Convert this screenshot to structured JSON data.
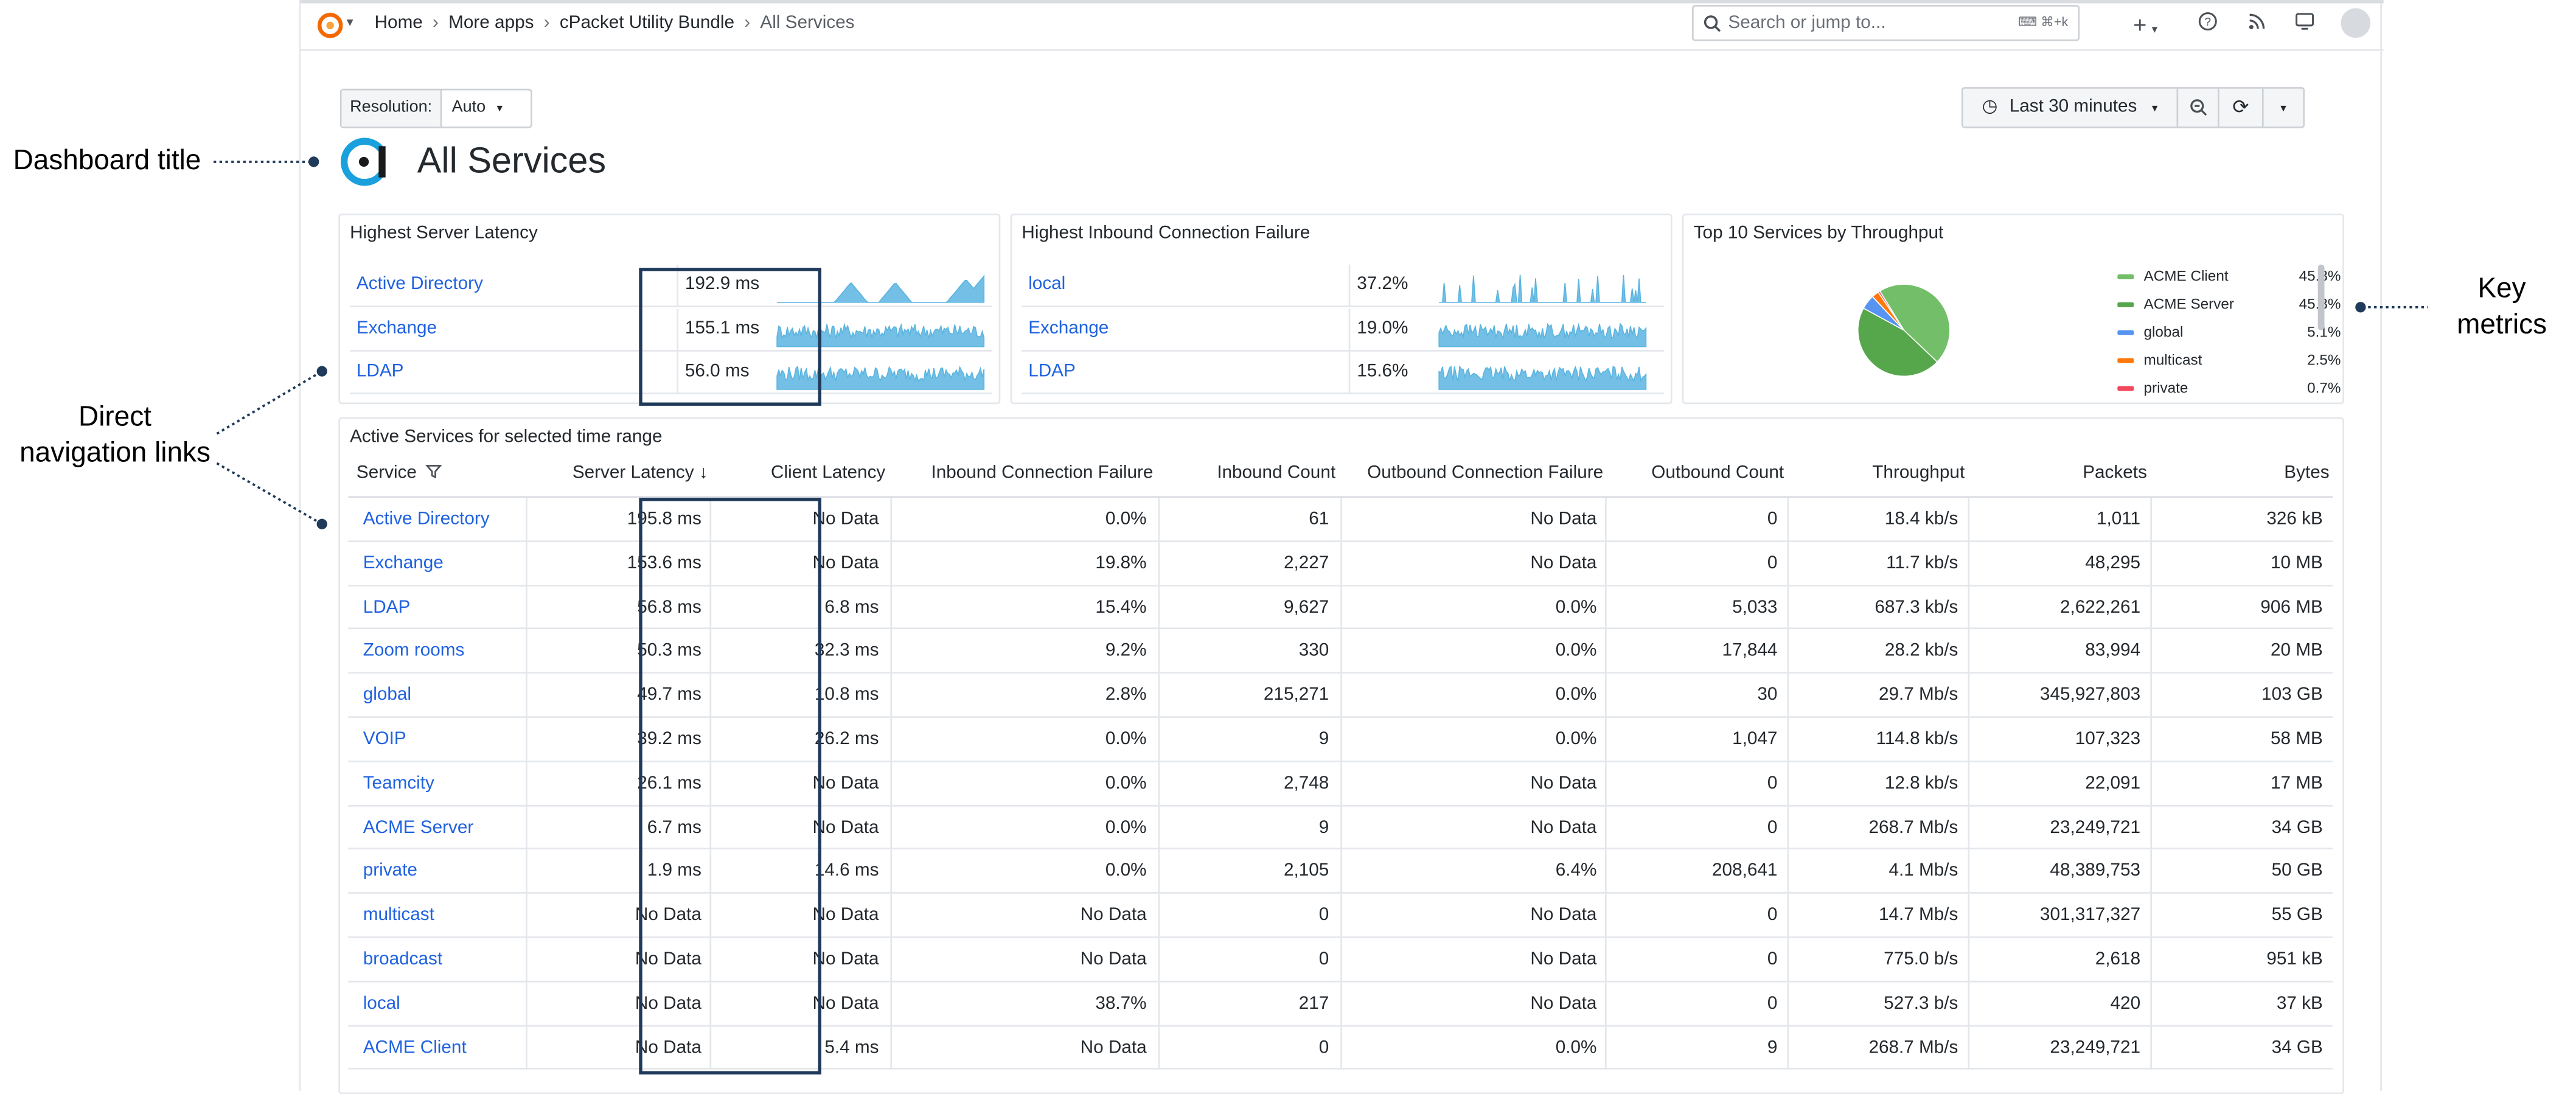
{
  "topbar": {
    "breadcrumbs": [
      "Home",
      "More apps",
      "cPacket Utility Bundle",
      "All Services"
    ],
    "search_placeholder": "Search or jump to...",
    "search_shortcut": "⌘+k",
    "add_label": "+"
  },
  "controls": {
    "resolution_label": "Resolution:",
    "resolution_value": "Auto",
    "time_range": "Last 30 minutes"
  },
  "dashboard": {
    "title": "All Services"
  },
  "latency_panel": {
    "title": "Highest Server Latency",
    "rows": [
      {
        "name": "Active Directory",
        "value": "192.9 ms"
      },
      {
        "name": "Exchange",
        "value": "155.1 ms"
      },
      {
        "name": "LDAP",
        "value": "56.0 ms"
      }
    ]
  },
  "failure_panel": {
    "title": "Highest Inbound Connection Failure",
    "rows": [
      {
        "name": "local",
        "value": "37.2%"
      },
      {
        "name": "Exchange",
        "value": "19.0%"
      },
      {
        "name": "LDAP",
        "value": "15.6%"
      }
    ]
  },
  "throughput_panel": {
    "title": "Top 10 Services by Throughput",
    "legend": [
      {
        "name": "ACME Client",
        "value": "45.8%",
        "percent": 45.8,
        "color": "#73bf69"
      },
      {
        "name": "ACME Server",
        "value": "45.8%",
        "percent": 45.8,
        "color": "#56a64b"
      },
      {
        "name": "global",
        "value": "5.1%",
        "percent": 5.1,
        "color": "#5794f2"
      },
      {
        "name": "multicast",
        "value": "2.5%",
        "percent": 2.5,
        "color": "#ff780a"
      },
      {
        "name": "private",
        "value": "0.7%",
        "percent": 0.7,
        "color": "#f2495c"
      }
    ]
  },
  "table": {
    "title": "Active Services for selected time range",
    "columns": [
      "Service",
      "Server Latency",
      "Client Latency",
      "Inbound Connection Failure",
      "Inbound Count",
      "Outbound Connection Failure",
      "Outbound Count",
      "Throughput",
      "Packets",
      "Bytes"
    ],
    "rows": [
      [
        "Active Directory",
        "195.8 ms",
        "No Data",
        "0.0%",
        "61",
        "No Data",
        "0",
        "18.4 kb/s",
        "1,011",
        "326 kB"
      ],
      [
        "Exchange",
        "153.6 ms",
        "No Data",
        "19.8%",
        "2,227",
        "No Data",
        "0",
        "11.7 kb/s",
        "48,295",
        "10 MB"
      ],
      [
        "LDAP",
        "56.8 ms",
        "6.8 ms",
        "15.4%",
        "9,627",
        "0.0%",
        "5,033",
        "687.3 kb/s",
        "2,622,261",
        "906 MB"
      ],
      [
        "Zoom rooms",
        "50.3 ms",
        "32.3 ms",
        "9.2%",
        "330",
        "0.0%",
        "17,844",
        "28.2 kb/s",
        "83,994",
        "20 MB"
      ],
      [
        "global",
        "49.7 ms",
        "10.8 ms",
        "2.8%",
        "215,271",
        "0.0%",
        "30",
        "29.7 Mb/s",
        "345,927,803",
        "103 GB"
      ],
      [
        "VOIP",
        "39.2 ms",
        "26.2 ms",
        "0.0%",
        "9",
        "0.0%",
        "1,047",
        "114.8 kb/s",
        "107,323",
        "58 MB"
      ],
      [
        "Teamcity",
        "26.1 ms",
        "No Data",
        "0.0%",
        "2,748",
        "No Data",
        "0",
        "12.8 kb/s",
        "22,091",
        "17 MB"
      ],
      [
        "ACME Server",
        "6.7 ms",
        "No Data",
        "0.0%",
        "9",
        "No Data",
        "0",
        "268.7 Mb/s",
        "23,249,721",
        "34 GB"
      ],
      [
        "private",
        "1.9 ms",
        "14.6 ms",
        "0.0%",
        "2,105",
        "6.4%",
        "208,641",
        "4.1 Mb/s",
        "48,389,753",
        "50 GB"
      ],
      [
        "multicast",
        "No Data",
        "No Data",
        "No Data",
        "0",
        "No Data",
        "0",
        "14.7 Mb/s",
        "301,317,327",
        "55 GB"
      ],
      [
        "broadcast",
        "No Data",
        "No Data",
        "No Data",
        "0",
        "No Data",
        "0",
        "775.0 b/s",
        "2,618",
        "951 kB"
      ],
      [
        "local",
        "No Data",
        "No Data",
        "38.7%",
        "217",
        "No Data",
        "0",
        "527.3 b/s",
        "420",
        "37 kB"
      ],
      [
        "ACME Client",
        "No Data",
        "5.4 ms",
        "No Data",
        "0",
        "0.0%",
        "9",
        "268.7 Mb/s",
        "23,249,721",
        "34 GB"
      ]
    ]
  },
  "annotations": {
    "dashboard_title": "Dashboard title",
    "nav_links_line1": "Direct",
    "nav_links_line2": "navigation links",
    "key_metrics_line1": "Key",
    "key_metrics_line2": "metrics"
  },
  "colors": {
    "link": "#1f62e0",
    "sparkline": "#5ab4e0",
    "annotation": "#1f3a5a"
  },
  "icons": [
    "grafana-logo-icon",
    "chevron-down-icon",
    "chevron-right-icon",
    "search-icon",
    "keyboard-icon",
    "plus-icon",
    "help-icon",
    "rss-icon",
    "tv-icon",
    "clock-icon",
    "zoom-out-icon",
    "refresh-icon",
    "filter-icon",
    "arrow-down-icon",
    "cpacket-logo-icon"
  ]
}
